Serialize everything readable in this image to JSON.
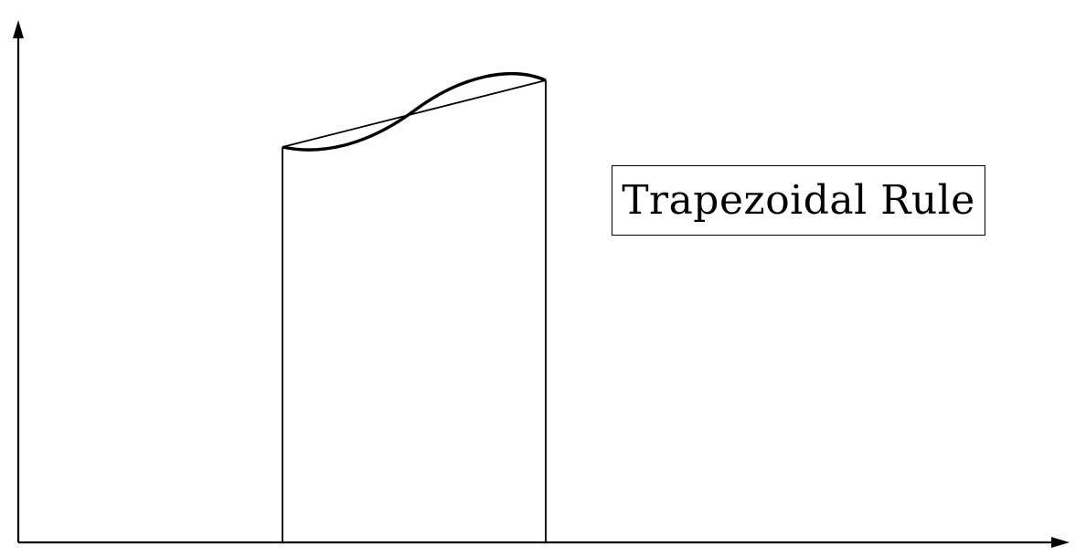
{
  "label": {
    "text": "Trapezoidal Rule"
  },
  "colors": {
    "ink": "#000000",
    "background": "#ffffff"
  }
}
